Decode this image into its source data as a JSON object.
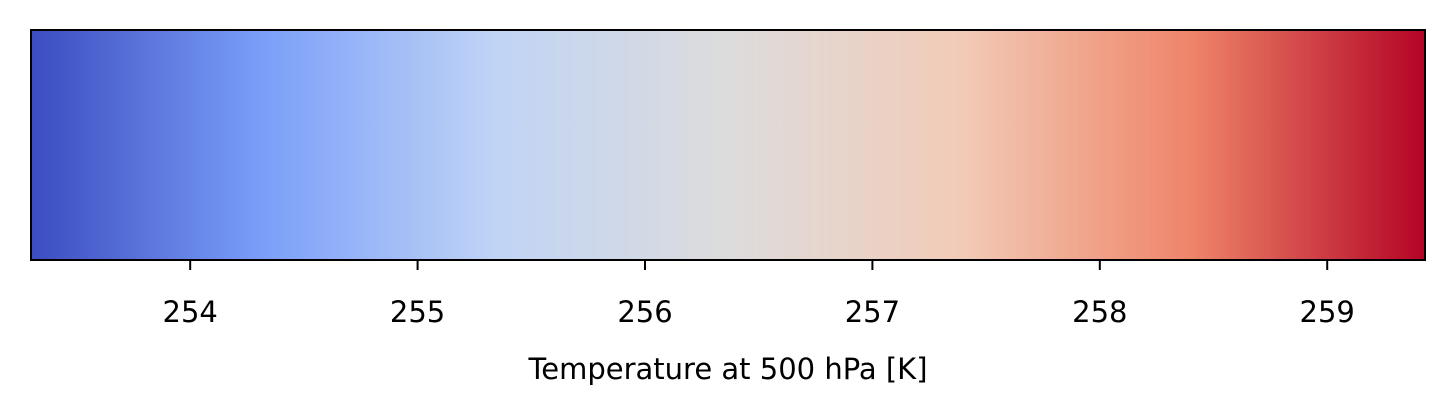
{
  "chart_data": {
    "type": "colorbar",
    "orientation": "horizontal",
    "colormap": "coolwarm",
    "xlabel": "Temperature at 500 hPa [K]",
    "xlim": [
      253.3,
      259.43
    ],
    "ticks": [
      254,
      255,
      256,
      257,
      258,
      259
    ],
    "tick_labels": [
      "254",
      "255",
      "256",
      "257",
      "258",
      "259"
    ],
    "colors": [
      "#3b4cc0",
      "#7b9ff9",
      "#c0d4f5",
      "#dddcdc",
      "#f2cbb7",
      "#ee8468",
      "#b40426"
    ]
  }
}
